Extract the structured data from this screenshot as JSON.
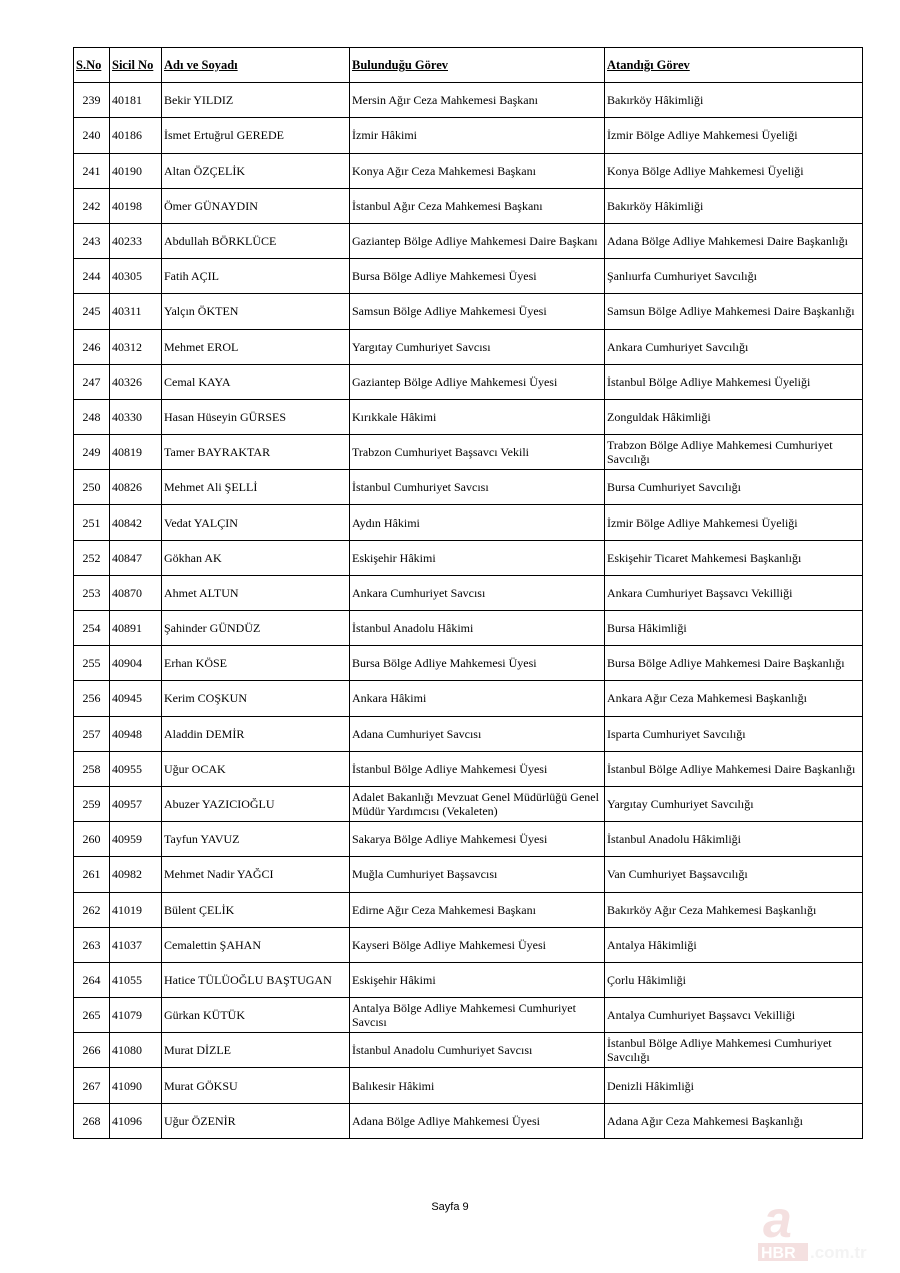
{
  "table": {
    "headers": [
      "S.No",
      "Sicil No",
      "Adı ve Soyadı",
      "Bulunduğu Görev",
      "Atandığı Görev"
    ],
    "rows": [
      [
        "239",
        "40181",
        "Bekir YILDIZ",
        "Mersin Ağır Ceza Mahkemesi Başkanı",
        "Bakırköy Hâkimliği"
      ],
      [
        "240",
        "40186",
        "İsmet Ertuğrul GEREDE",
        "İzmir Hâkimi",
        "İzmir Bölge Adliye Mahkemesi Üyeliği"
      ],
      [
        "241",
        "40190",
        "Altan ÖZÇELİK",
        "Konya Ağır Ceza Mahkemesi Başkanı",
        "Konya Bölge Adliye Mahkemesi Üyeliği"
      ],
      [
        "242",
        "40198",
        "Ömer GÜNAYDIN",
        "İstanbul Ağır Ceza Mahkemesi Başkanı",
        "Bakırköy Hâkimliği"
      ],
      [
        "243",
        "40233",
        "Abdullah BÖRKLÜCE",
        "Gaziantep Bölge Adliye Mahkemesi Daire Başkanı",
        "Adana Bölge Adliye Mahkemesi Daire Başkanlığı"
      ],
      [
        "244",
        "40305",
        "Fatih AÇIL",
        "Bursa Bölge Adliye Mahkemesi Üyesi",
        "Şanlıurfa Cumhuriyet Savcılığı"
      ],
      [
        "245",
        "40311",
        "Yalçın ÖKTEN",
        "Samsun Bölge Adliye Mahkemesi Üyesi",
        "Samsun Bölge Adliye Mahkemesi Daire Başkanlığı"
      ],
      [
        "246",
        "40312",
        "Mehmet EROL",
        "Yargıtay Cumhuriyet Savcısı",
        "Ankara Cumhuriyet Savcılığı"
      ],
      [
        "247",
        "40326",
        "Cemal KAYA",
        "Gaziantep Bölge Adliye Mahkemesi Üyesi",
        "İstanbul Bölge Adliye Mahkemesi Üyeliği"
      ],
      [
        "248",
        "40330",
        "Hasan Hüseyin GÜRSES",
        "Kırıkkale Hâkimi",
        "Zonguldak Hâkimliği"
      ],
      [
        "249",
        "40819",
        "Tamer BAYRAKTAR",
        "Trabzon Cumhuriyet Başsavcı Vekili",
        "Trabzon Bölge Adliye Mahkemesi Cumhuriyet Savcılığı"
      ],
      [
        "250",
        "40826",
        "Mehmet Ali ŞELLİ",
        "İstanbul Cumhuriyet Savcısı",
        "Bursa Cumhuriyet Savcılığı"
      ],
      [
        "251",
        "40842",
        "Vedat YALÇIN",
        "Aydın Hâkimi",
        "İzmir Bölge Adliye Mahkemesi Üyeliği"
      ],
      [
        "252",
        "40847",
        "Gökhan AK",
        "Eskişehir Hâkimi",
        "Eskişehir Ticaret Mahkemesi Başkanlığı"
      ],
      [
        "253",
        "40870",
        "Ahmet ALTUN",
        "Ankara Cumhuriyet Savcısı",
        "Ankara Cumhuriyet Başsavcı Vekilliği"
      ],
      [
        "254",
        "40891",
        "Şahinder GÜNDÜZ",
        "İstanbul Anadolu Hâkimi",
        "Bursa Hâkimliği"
      ],
      [
        "255",
        "40904",
        "Erhan KÖSE",
        "Bursa Bölge Adliye Mahkemesi Üyesi",
        "Bursa Bölge Adliye Mahkemesi Daire Başkanlığı"
      ],
      [
        "256",
        "40945",
        "Kerim COŞKUN",
        "Ankara Hâkimi",
        "Ankara Ağır Ceza Mahkemesi Başkanlığı"
      ],
      [
        "257",
        "40948",
        "Aladdin DEMİR",
        "Adana Cumhuriyet Savcısı",
        "Isparta Cumhuriyet Savcılığı"
      ],
      [
        "258",
        "40955",
        "Uğur OCAK",
        "İstanbul Bölge Adliye Mahkemesi Üyesi",
        "İstanbul Bölge Adliye Mahkemesi Daire Başkanlığı"
      ],
      [
        "259",
        "40957",
        "Abuzer YAZICIOĞLU",
        "Adalet Bakanlığı Mevzuat Genel Müdürlüğü Genel Müdür Yardımcısı (Vekaleten)",
        "Yargıtay Cumhuriyet Savcılığı"
      ],
      [
        "260",
        "40959",
        "Tayfun YAVUZ",
        "Sakarya Bölge Adliye Mahkemesi Üyesi",
        "İstanbul Anadolu Hâkimliği"
      ],
      [
        "261",
        "40982",
        "Mehmet Nadir YAĞCI",
        "Muğla Cumhuriyet Başsavcısı",
        "Van Cumhuriyet Başsavcılığı"
      ],
      [
        "262",
        "41019",
        "Bülent ÇELİK",
        "Edirne Ağır Ceza Mahkemesi Başkanı",
        "Bakırköy Ağır Ceza Mahkemesi Başkanlığı"
      ],
      [
        "263",
        "41037",
        "Cemalettin ŞAHAN",
        "Kayseri Bölge Adliye Mahkemesi Üyesi",
        "Antalya Hâkimliği"
      ],
      [
        "264",
        "41055",
        "Hatice TÜLÜOĞLU BAŞTUGAN",
        "Eskişehir Hâkimi",
        "Çorlu Hâkimliği"
      ],
      [
        "265",
        "41079",
        "Gürkan KÜTÜK",
        "Antalya Bölge Adliye Mahkemesi Cumhuriyet Savcısı",
        "Antalya Cumhuriyet Başsavcı Vekilliği"
      ],
      [
        "266",
        "41080",
        "Murat DİZLE",
        "İstanbul Anadolu Cumhuriyet Savcısı",
        "İstanbul Bölge Adliye Mahkemesi Cumhuriyet Savcılığı"
      ],
      [
        "267",
        "41090",
        "Murat GÖKSU",
        "Balıkesir Hâkimi",
        "Denizli Hâkimliği"
      ],
      [
        "268",
        "41096",
        "Uğur ÖZENİR",
        "Adana Bölge Adliye Mahkemesi Üyesi",
        "Adana Ağır Ceza Mahkemesi Başkanlığı"
      ]
    ]
  },
  "footer": {
    "page_label": "Sayfa 9"
  },
  "watermark": {
    "text": "aHBR.com.tr",
    "color": "#d9a0a0"
  }
}
